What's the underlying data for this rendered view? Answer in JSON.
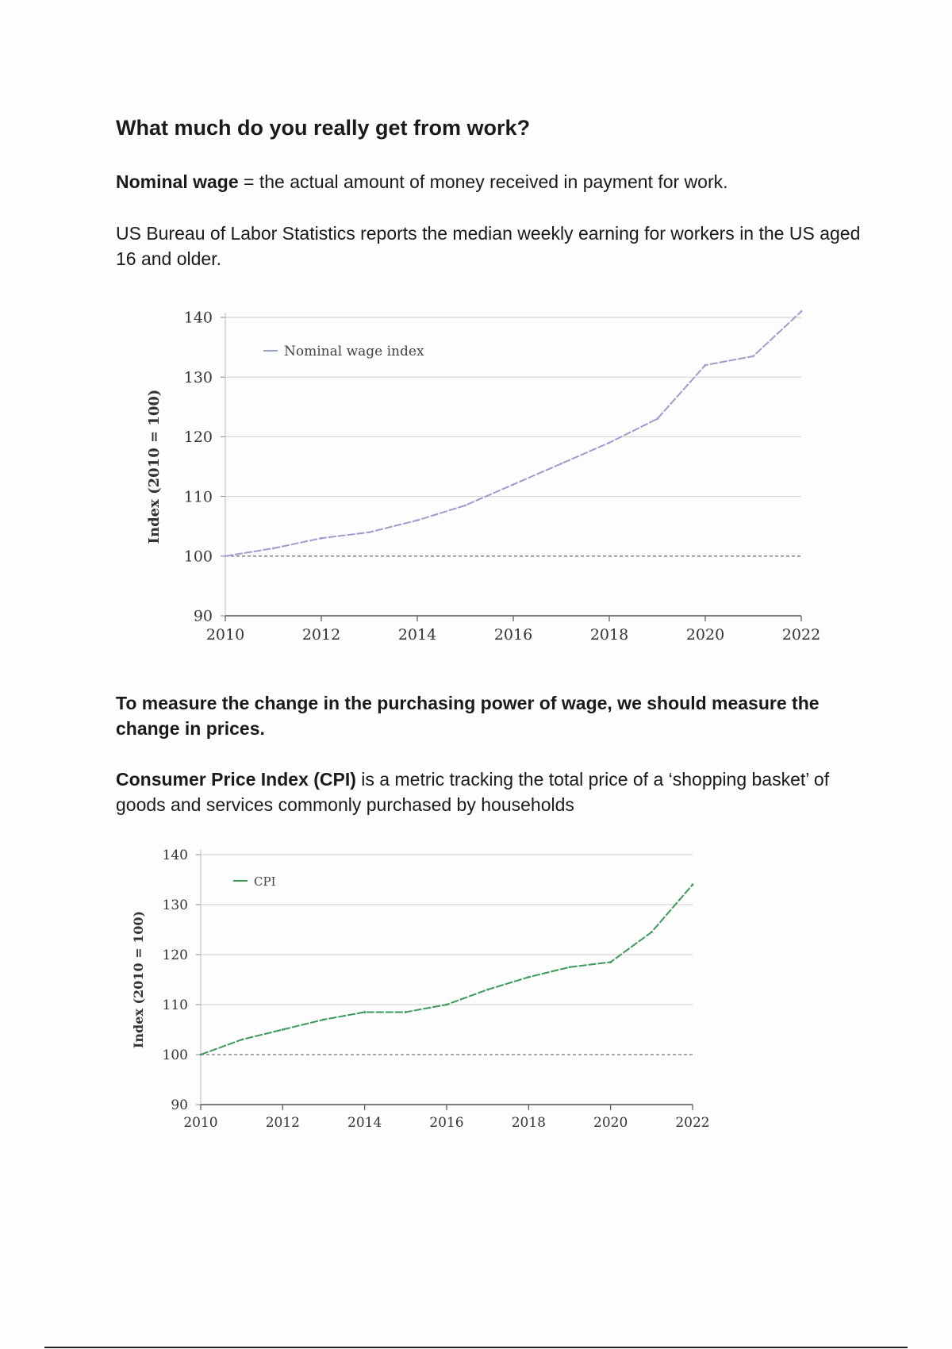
{
  "heading": "What much do you really get from work?",
  "nominal_def": {
    "term": "Nominal wage",
    "rest": " = the actual amount of money received in payment for work."
  },
  "bls_text": "US Bureau of Labor Statistics reports the median weekly earning for workers in the US aged 16 and older.",
  "purchasing_text": "To measure the change in the purchasing power of wage, we should measure the change in prices.",
  "cpi_def": {
    "term": "Consumer Price Index (CPI)",
    "rest": " is a metric tracking the total price of a ‘shopping basket’ of goods and services commonly purchased by households"
  },
  "colors": {
    "wage_line": "#9a9ecb",
    "cpi_line": "#3a9a5a",
    "grid": "#cfcfcf",
    "baseline": "#777777"
  },
  "chart_data": [
    {
      "type": "line",
      "title": "",
      "xlabel": "",
      "ylabel": "Index (2010 = 100)",
      "legend": "top-left",
      "xlim": [
        2010,
        2022
      ],
      "ylim": [
        90,
        140
      ],
      "xticks": [
        "2010",
        "2012",
        "2014",
        "2016",
        "2018",
        "2020",
        "2022"
      ],
      "yticks": [
        "90",
        "100",
        "110",
        "120",
        "130",
        "140"
      ],
      "reference_line": 100,
      "series": [
        {
          "name": "Nominal wage index",
          "x": [
            2010,
            2011,
            2012,
            2013,
            2014,
            2015,
            2016,
            2017,
            2018,
            2019,
            2020,
            2021,
            2022
          ],
          "values": [
            100,
            101.3,
            103,
            104,
            106,
            108.5,
            112,
            115.5,
            119,
            123,
            132,
            133.5,
            141
          ]
        }
      ]
    },
    {
      "type": "line",
      "title": "",
      "xlabel": "",
      "ylabel": "Index (2010 = 100)",
      "legend": "top-left",
      "xlim": [
        2010,
        2022
      ],
      "ylim": [
        90,
        140
      ],
      "xticks": [
        "2010",
        "2012",
        "2014",
        "2016",
        "2018",
        "2020",
        "2022"
      ],
      "yticks": [
        "90",
        "100",
        "110",
        "120",
        "130",
        "140"
      ],
      "reference_line": 100,
      "series": [
        {
          "name": "CPI",
          "x": [
            2010,
            2011,
            2012,
            2013,
            2014,
            2015,
            2016,
            2017,
            2018,
            2019,
            2020,
            2021,
            2022
          ],
          "values": [
            100,
            103,
            105,
            107,
            108.5,
            108.5,
            110,
            113,
            115.5,
            117.5,
            118.5,
            124.5,
            134
          ]
        }
      ]
    }
  ]
}
